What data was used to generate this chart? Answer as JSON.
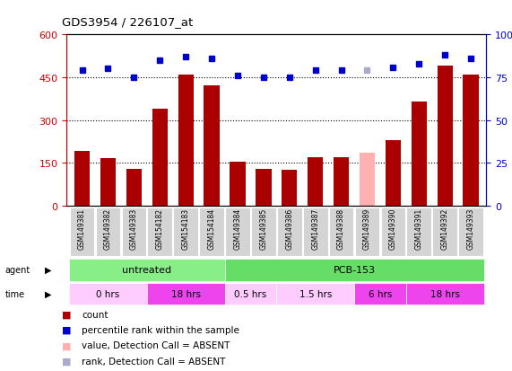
{
  "title": "GDS3954 / 226107_at",
  "samples": [
    "GSM149381",
    "GSM149382",
    "GSM149383",
    "GSM154182",
    "GSM154183",
    "GSM154184",
    "GSM149384",
    "GSM149385",
    "GSM149386",
    "GSM149387",
    "GSM149388",
    "GSM149389",
    "GSM149390",
    "GSM149391",
    "GSM149392",
    "GSM149393"
  ],
  "count_values": [
    190,
    165,
    130,
    340,
    460,
    420,
    155,
    130,
    125,
    170,
    170,
    185,
    230,
    365,
    490,
    460
  ],
  "count_absent": [
    false,
    false,
    false,
    false,
    false,
    false,
    false,
    false,
    false,
    false,
    false,
    true,
    false,
    false,
    false,
    false
  ],
  "percentile_values": [
    79,
    80,
    75,
    85,
    87,
    86,
    76,
    75,
    75,
    79,
    79,
    79,
    81,
    83,
    88,
    86
  ],
  "percentile_absent": [
    false,
    false,
    false,
    false,
    false,
    false,
    false,
    false,
    false,
    false,
    false,
    true,
    false,
    false,
    false,
    false
  ],
  "ylim_left": [
    0,
    600
  ],
  "ylim_right": [
    0,
    100
  ],
  "yticks_left": [
    0,
    150,
    300,
    450,
    600
  ],
  "yticks_right": [
    0,
    25,
    50,
    75,
    100
  ],
  "bar_color": "#AA0000",
  "bar_absent_color": "#FFB0B0",
  "dot_color": "#0000CC",
  "dot_absent_color": "#AAAACC",
  "agent_groups": [
    {
      "label": "untreated",
      "start": 0,
      "end": 6,
      "color": "#88EE88"
    },
    {
      "label": "PCB-153",
      "start": 6,
      "end": 16,
      "color": "#66DD66"
    }
  ],
  "time_groups": [
    {
      "label": "0 hrs",
      "start": 0,
      "end": 3,
      "color": "#FFCCFF"
    },
    {
      "label": "18 hrs",
      "start": 3,
      "end": 6,
      "color": "#EE44EE"
    },
    {
      "label": "0.5 hrs",
      "start": 6,
      "end": 8,
      "color": "#FFCCFF"
    },
    {
      "label": "1.5 hrs",
      "start": 8,
      "end": 11,
      "color": "#FFCCFF"
    },
    {
      "label": "6 hrs",
      "start": 11,
      "end": 13,
      "color": "#EE44EE"
    },
    {
      "label": "18 hrs",
      "start": 13,
      "end": 16,
      "color": "#EE44EE"
    }
  ],
  "legend_items": [
    {
      "label": "count",
      "color": "#AA0000"
    },
    {
      "label": "percentile rank within the sample",
      "color": "#0000CC"
    },
    {
      "label": "value, Detection Call = ABSENT",
      "color": "#FFB0B0"
    },
    {
      "label": "rank, Detection Call = ABSENT",
      "color": "#AAAACC"
    }
  ],
  "background_color": "#FFFFFF"
}
